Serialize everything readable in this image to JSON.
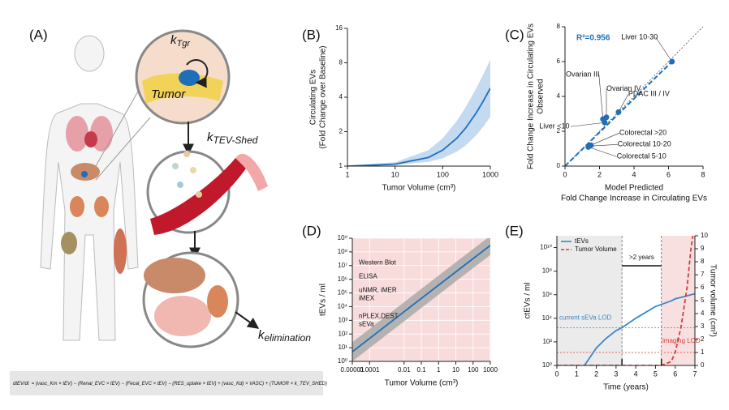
{
  "illustration": {
    "panel": "(A)",
    "k_tgr": {
      "symbol": "k",
      "subscript": "Tgr"
    },
    "tumor": "Tumor",
    "k_shed": {
      "symbol": "k",
      "subscript": "TEV-Shed"
    },
    "k_elim": {
      "symbol": "k",
      "subscript": "elimination"
    },
    "equation": {
      "lhs": "dtEV/dt",
      "rhs": "= (vasc_Km × tEV) − (Renal_EVC × tEV) − (Fecal_EVC × tEV) − (RES_uptake × tEV) + (vasc_Kd) × VASC) + (TUMOR × k_TEV_SHED)"
    }
  },
  "chart_data": [
    {
      "type": "line",
      "panel": "(B)",
      "x_label": [
        "Tumor Volume (cm³)"
      ],
      "y_label": [
        "Circulating EVs",
        "(Fold Change over Baseline)"
      ],
      "x": [
        1,
        10,
        50,
        100,
        200,
        300,
        500,
        700,
        1000
      ],
      "series": [
        {
          "name": "Circulating EVs",
          "color": "#1f6fb8",
          "values": [
            1.0,
            1.04,
            1.19,
            1.38,
            1.76,
            2.14,
            2.9,
            3.66,
            4.8
          ]
        }
      ],
      "band": {
        "color": "#b8d3ee",
        "lower": [
          1.0,
          1.02,
          1.09,
          1.17,
          1.34,
          1.51,
          1.85,
          2.19,
          2.7
        ],
        "upper": [
          1.01,
          1.08,
          1.38,
          1.75,
          2.5,
          3.25,
          4.75,
          6.25,
          8.5
        ]
      },
      "xlim": [
        1,
        1000
      ],
      "xticks": [
        1,
        10,
        100,
        1000
      ],
      "xlog": true,
      "ylim": [
        1,
        16
      ],
      "yticks": [
        1,
        2,
        4,
        8,
        16
      ],
      "ylog": true
    },
    {
      "type": "scatter",
      "panel": "(C)",
      "x_label": [
        "Model Predicted",
        "Fold Change Increase in Circulating EVs"
      ],
      "y_label": [
        "Fold Change Increase in Circulating EVs",
        "Observed"
      ],
      "annotation": "R²=0.956",
      "x": [
        6.2,
        3.1,
        2.4,
        2.2,
        2.3,
        1.5,
        1.4,
        1.35
      ],
      "values": [
        6.0,
        3.1,
        2.8,
        2.7,
        2.5,
        1.2,
        1.15,
        1.1
      ],
      "point_labels": [
        "Liver 10-30",
        "PDAC III / IV",
        "Ovarian IV",
        "Ovarian III",
        "Liver <10",
        "Colorectal >20",
        "Colorectal 10-20",
        "Colorectal 5-10"
      ],
      "color": "#1f6fb8",
      "xlim": [
        0,
        8
      ],
      "xticks": [
        0,
        2,
        4,
        6,
        8
      ],
      "ylim": [
        0,
        8
      ],
      "yticks": [
        0,
        2,
        4,
        6,
        8
      ]
    },
    {
      "type": "line",
      "panel": "(D)",
      "background": "#f8dcdc",
      "grid": true,
      "x_label": [
        "Tumor Volume (cm³)"
      ],
      "y_label": [
        "tEVs / ml"
      ],
      "x": [
        1e-05,
        0.001,
        0.1,
        10,
        1000
      ],
      "series": [
        {
          "name": "tEVs",
          "color": "#1f6fb8",
          "values": [
            5,
            450,
            40000,
            3500000,
            300000000
          ]
        }
      ],
      "band": {
        "color": "#a9a9a9",
        "lower": [
          1,
          90,
          8000,
          700000,
          60000000
        ],
        "upper": [
          25,
          2250,
          200000,
          17500000,
          1500000000
        ]
      },
      "annotations": [
        "Western Blot",
        "ELISA",
        "uNMR, iMER",
        "iMEX",
        "nPLEX,DEST",
        "sEVa"
      ],
      "xlim": [
        1e-05,
        1000
      ],
      "xlog": true,
      "xticks": [
        1e-05,
        0.0001,
        0.01,
        0.1,
        1,
        10,
        100,
        1000
      ],
      "ylim": [
        1,
        1000000000
      ],
      "ylog": true,
      "yticks": [
        {
          "value": 1,
          "label": "10⁰"
        },
        {
          "value": 10,
          "label": "10¹"
        },
        {
          "value": 100,
          "label": "10²"
        },
        {
          "value": 1000,
          "label": "10³"
        },
        {
          "value": 10000,
          "label": "10⁴"
        },
        {
          "value": 100000,
          "label": "10⁵"
        },
        {
          "value": 1000000,
          "label": "10⁶"
        },
        {
          "value": 10000000,
          "label": "10⁷"
        },
        {
          "value": 100000000,
          "label": "10⁸"
        },
        {
          "value": 1000000000,
          "label": "10⁹"
        }
      ]
    },
    {
      "type": "line",
      "panel": "(E)",
      "x_label": [
        "Time (years)"
      ],
      "y_label": [
        "ctEVs / ml"
      ],
      "y2_label": [
        "Tumor volume (cm³)"
      ],
      "x": [
        0,
        1,
        1.4,
        2,
        2.5,
        3,
        3.3,
        4,
        5,
        5.3,
        5.8,
        6,
        6.3,
        6.6,
        6.8,
        6.9,
        7
      ],
      "series": [
        {
          "name": "tEVs",
          "color": "#3b86c8",
          "values": [
            null,
            null,
            1,
            30,
            200,
            900,
            1600,
            10000,
            100000,
            150000,
            300000,
            450000,
            600000,
            800000,
            1000000,
            1100000,
            1200000
          ]
        },
        {
          "name": "Tumor Volume",
          "color": "#d33b3b",
          "dashed": true,
          "axis": "y2",
          "values": [
            0,
            0,
            0,
            0,
            0,
            0,
            0,
            0,
            0,
            0,
            0.3,
            1,
            3,
            6,
            9,
            10,
            null
          ]
        }
      ],
      "regions": [
        {
          "x": [
            0,
            3.3
          ],
          "color": "#ebebeb"
        },
        {
          "x": [
            5.3,
            7
          ],
          "color": "#f9e0e0"
        }
      ],
      "bracket": {
        "x": [
          3.3,
          5.3
        ],
        "label": ">2 years"
      },
      "reference_lines": [
        {
          "value": 1600,
          "label": "current sEVa LOD",
          "color": "#3b86c8"
        },
        {
          "value": 1,
          "axis": "y2",
          "label": "imaging LOD",
          "color": "#d33b3b"
        }
      ],
      "legend": "upper left",
      "xlim": [
        0,
        7
      ],
      "xticks": [
        0,
        1,
        2,
        3,
        4,
        5,
        6,
        7
      ],
      "ylim": [
        1,
        100000000000
      ],
      "ylog": true,
      "yticks": [
        {
          "value": 1,
          "label": "10⁰"
        },
        {
          "value": 100,
          "label": "10²"
        },
        {
          "value": 10000,
          "label": "10⁴"
        },
        {
          "value": 1000000,
          "label": "10⁶"
        },
        {
          "value": 100000000,
          "label": "10⁸"
        },
        {
          "value": 10000000000,
          "label": "10¹⁰"
        }
      ],
      "y2lim": [
        0,
        10
      ],
      "y2ticks": [
        0,
        1,
        2,
        3,
        4,
        5,
        6,
        7,
        8,
        9,
        10
      ]
    }
  ]
}
